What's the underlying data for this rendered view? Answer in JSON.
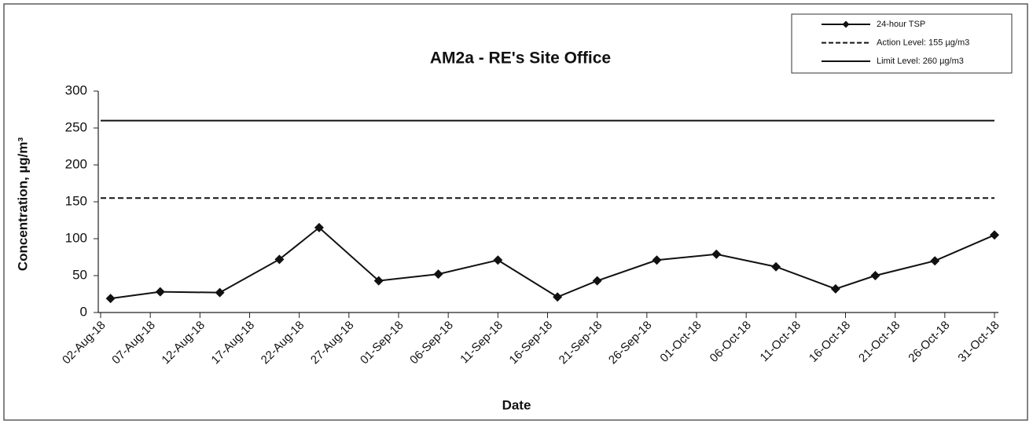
{
  "chart_data": {
    "type": "line",
    "title": "AM2a - RE's Site Office",
    "x_label": "Date",
    "y_label": "Concentration, µg/m³",
    "x": [
      "2018-08-03",
      "2018-08-08",
      "2018-08-14",
      "2018-08-20",
      "2018-08-24",
      "2018-08-30",
      "2018-09-05",
      "2018-09-11",
      "2018-09-17",
      "2018-09-21",
      "2018-09-27",
      "2018-10-03",
      "2018-10-09",
      "2018-10-15",
      "2018-10-19",
      "2018-10-25",
      "2018-10-31"
    ],
    "series": [
      {
        "name": "24-hour TSP",
        "color": "#111111",
        "marker": "diamond",
        "values": [
          19,
          28,
          27,
          72,
          115,
          43,
          52,
          71,
          21,
          43,
          71,
          79,
          62,
          32,
          50,
          70,
          105
        ]
      }
    ],
    "reference_lines": [
      {
        "name": "Action Level: 155 µg/m3",
        "value": 155,
        "style": "dashed",
        "color": "#111111"
      },
      {
        "name": "Limit Level: 260 µg/m3",
        "value": 260,
        "style": "solid",
        "color": "#111111"
      }
    ],
    "xlim": [
      "2018-08-02",
      "2018-10-31"
    ],
    "xticks": [
      {
        "value": "2018-08-02",
        "label": "02-Aug-18"
      },
      {
        "value": "2018-08-07",
        "label": "07-Aug-18"
      },
      {
        "value": "2018-08-12",
        "label": "12-Aug-18"
      },
      {
        "value": "2018-08-17",
        "label": "17-Aug-18"
      },
      {
        "value": "2018-08-22",
        "label": "22-Aug-18"
      },
      {
        "value": "2018-08-27",
        "label": "27-Aug-18"
      },
      {
        "value": "2018-09-01",
        "label": "01-Sep-18"
      },
      {
        "value": "2018-09-06",
        "label": "06-Sep-18"
      },
      {
        "value": "2018-09-11",
        "label": "11-Sep-18"
      },
      {
        "value": "2018-09-16",
        "label": "16-Sep-18"
      },
      {
        "value": "2018-09-21",
        "label": "21-Sep-18"
      },
      {
        "value": "2018-09-26",
        "label": "26-Sep-18"
      },
      {
        "value": "2018-10-01",
        "label": "01-Oct-18"
      },
      {
        "value": "2018-10-06",
        "label": "06-Oct-18"
      },
      {
        "value": "2018-10-11",
        "label": "11-Oct-18"
      },
      {
        "value": "2018-10-16",
        "label": "16-Oct-18"
      },
      {
        "value": "2018-10-21",
        "label": "21-Oct-18"
      },
      {
        "value": "2018-10-26",
        "label": "26-Oct-18"
      },
      {
        "value": "2018-10-31",
        "label": "31-Oct-18"
      }
    ],
    "ylim": [
      0,
      300
    ],
    "yticks": [
      0,
      50,
      100,
      150,
      200,
      250,
      300
    ],
    "grid": false,
    "legend": "top-right"
  }
}
